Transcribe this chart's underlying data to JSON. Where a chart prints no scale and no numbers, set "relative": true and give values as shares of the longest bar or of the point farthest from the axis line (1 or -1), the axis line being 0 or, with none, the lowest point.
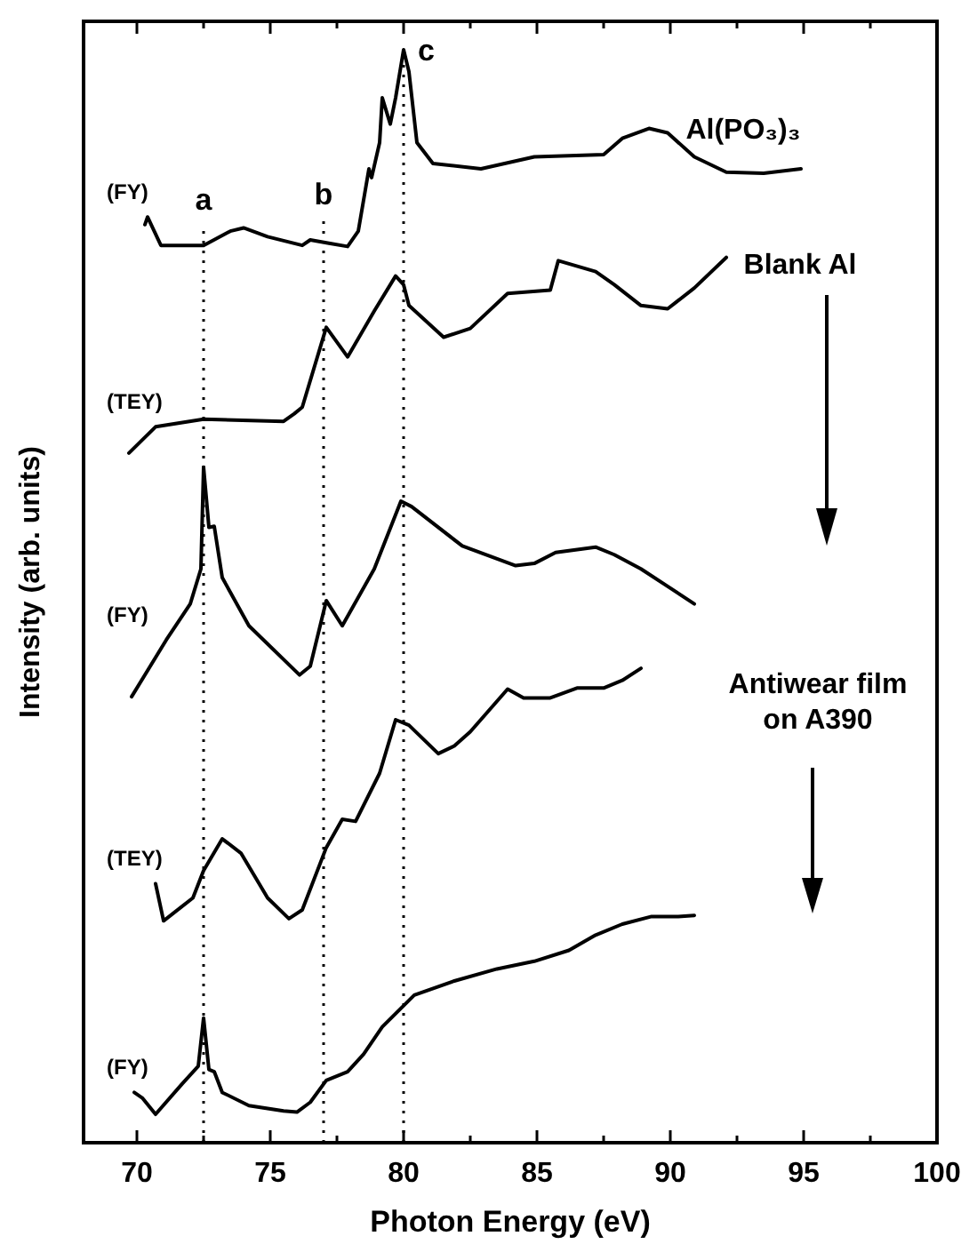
{
  "chart_data": {
    "type": "line",
    "relative": true,
    "xlabel": "Photon Energy (eV)",
    "ylabel": "Intensity (arb. units)",
    "xlim": [
      68,
      100
    ],
    "xticks": [
      70,
      {
        "value": 72.5,
        "label": null
      },
      75,
      {
        "value": 77.5,
        "label": null
      },
      80,
      {
        "value": 82.5,
        "label": null
      },
      85,
      {
        "value": 87.5,
        "label": null
      },
      90,
      {
        "value": 92.5,
        "label": null
      },
      95,
      {
        "value": 97.5,
        "label": null
      },
      100
    ],
    "series": [
      {
        "name": "(FY)",
        "color": "#000000",
        "x": [
          70.3,
          70.4,
          70.9,
          72.5,
          73.5,
          74,
          74.9,
          76.2,
          76.5,
          77.2,
          77.9,
          78.3,
          78.7,
          78.8,
          79.1,
          79.2,
          79.5,
          79.7,
          80,
          80.2,
          80.5,
          81.1,
          82.9,
          84.9,
          87.5,
          88.2,
          89.2,
          89.9,
          90.9,
          92.1,
          93.5,
          94.9
        ],
        "values": [
          0.84,
          0.847,
          0.821,
          0.821,
          0.834,
          0.837,
          0.829,
          0.821,
          0.826,
          0.823,
          0.82,
          0.834,
          0.891,
          0.883,
          0.915,
          0.956,
          0.932,
          0.956,
          1,
          0.98,
          0.915,
          0.896,
          0.891,
          0.902,
          0.904,
          0.919,
          0.928,
          0.924,
          0.902,
          0.888,
          0.887,
          0.891
        ]
      },
      {
        "name": "(TEY)",
        "color": "#000000",
        "x": [
          69.7,
          70.7,
          72.5,
          75.5,
          75.9,
          76.2,
          77.1,
          77.9,
          78.9,
          79.7,
          80,
          80.2,
          81.5,
          82.5,
          83.9,
          85.5,
          85.8,
          87.2,
          87.9,
          88.9,
          89.9,
          90.9,
          92.1
        ],
        "values": [
          0.631,
          0.655,
          0.662,
          0.66,
          0.667,
          0.673,
          0.746,
          0.719,
          0.761,
          0.793,
          0.785,
          0.766,
          0.737,
          0.745,
          0.777,
          0.78,
          0.807,
          0.797,
          0.785,
          0.766,
          0.763,
          0.782,
          0.81
        ]
      },
      {
        "name": "(FY)",
        "color": "#000000",
        "x": [
          69.8,
          71.1,
          72,
          72.4,
          72.5,
          72.7,
          72.9,
          73.2,
          74.2,
          76.1,
          76.5,
          77.1,
          77.7,
          78.9,
          79.9,
          80.3,
          82.2,
          84.2,
          84.9,
          85.7,
          87.2,
          87.9,
          88.9,
          89.9,
          90.9
        ],
        "values": [
          0.408,
          0.46,
          0.493,
          0.525,
          0.618,
          0.563,
          0.564,
          0.517,
          0.473,
          0.428,
          0.436,
          0.496,
          0.473,
          0.525,
          0.587,
          0.582,
          0.546,
          0.528,
          0.53,
          0.54,
          0.545,
          0.538,
          0.525,
          0.509,
          0.493
        ]
      },
      {
        "name": "(TEY)",
        "color": "#000000",
        "x": [
          70.7,
          71,
          72.1,
          72.5,
          73.2,
          73.9,
          74.9,
          75.7,
          76.2,
          77.1,
          77.7,
          78.2,
          79.1,
          79.7,
          80.2,
          81.3,
          81.9,
          82.5,
          83.9,
          84.5,
          85.5,
          86.5,
          87.5,
          88.2,
          88.9
        ],
        "values": [
          0.237,
          0.203,
          0.224,
          0.249,
          0.278,
          0.265,
          0.224,
          0.205,
          0.213,
          0.27,
          0.296,
          0.294,
          0.338,
          0.387,
          0.382,
          0.356,
          0.363,
          0.376,
          0.415,
          0.407,
          0.407,
          0.416,
          0.416,
          0.423,
          0.434
        ]
      },
      {
        "name": "(FY)",
        "color": "#000000",
        "x": [
          69.9,
          70.2,
          70.7,
          71.7,
          72.3,
          72.5,
          72.7,
          72.9,
          73.2,
          74.2,
          75.5,
          76,
          76.5,
          77.1,
          77.9,
          78.5,
          79.2,
          80.4,
          81.9,
          83.5,
          84.9,
          86.2,
          87.2,
          88.2,
          89.3,
          90.3,
          90.9
        ],
        "values": [
          0.046,
          0.041,
          0.026,
          0.054,
          0.07,
          0.114,
          0.067,
          0.065,
          0.046,
          0.034,
          0.029,
          0.028,
          0.037,
          0.057,
          0.065,
          0.081,
          0.106,
          0.135,
          0.148,
          0.159,
          0.166,
          0.176,
          0.19,
          0.2,
          0.207,
          0.207,
          0.208
        ]
      }
    ],
    "ref_lines": [
      {
        "axis": "x",
        "value": 72.5,
        "label": "a",
        "line_style": "dotted"
      },
      {
        "axis": "x",
        "value": 77,
        "label": "b",
        "line_style": "dotted"
      },
      {
        "axis": "x",
        "value": 80,
        "label": "c",
        "line_style": "dotted"
      }
    ],
    "annotations": [
      "Al(PO₃)₃",
      "Blank Al",
      "Antiwear film on A390"
    ],
    "legend": false,
    "grid": false
  }
}
